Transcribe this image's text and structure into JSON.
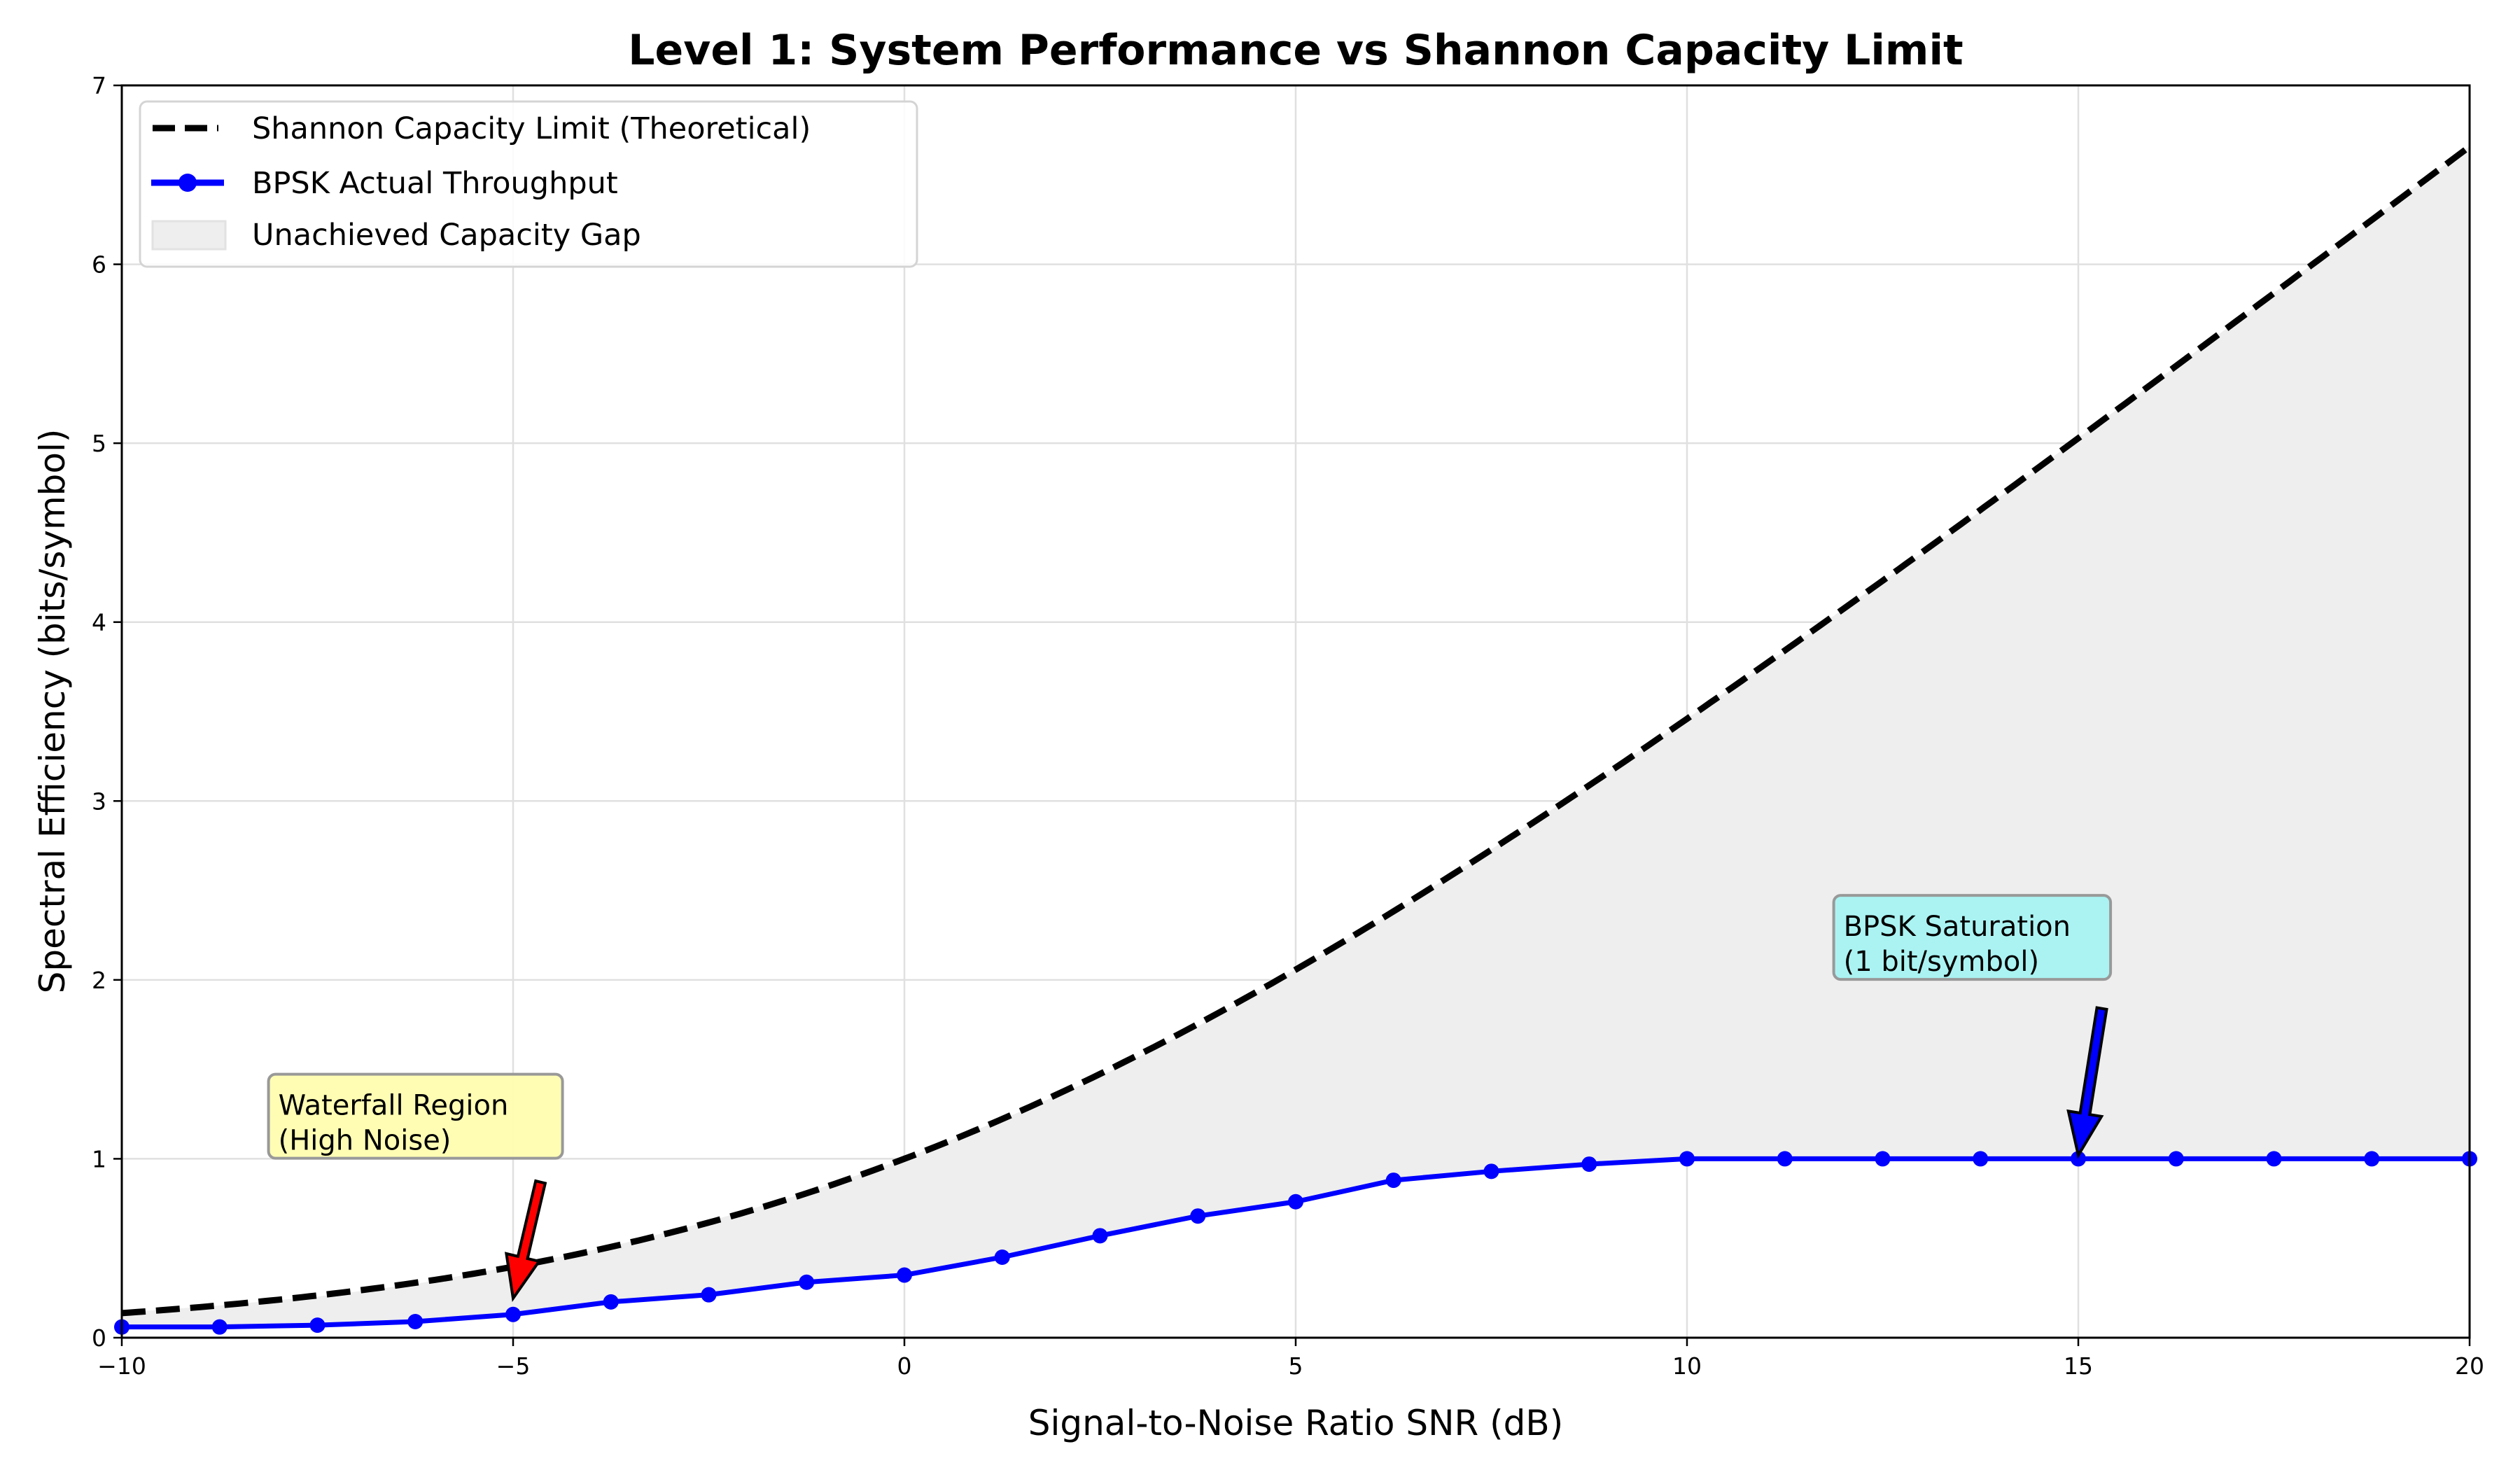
{
  "chart_data": {
    "type": "line",
    "title": "Level 1: System Performance vs Shannon Capacity Limit",
    "xlabel": "Signal-to-Noise Ratio SNR (dB)",
    "ylabel": "Spectral Efficiency (bits/symbol)",
    "xlim": [
      -10,
      20
    ],
    "ylim": [
      0,
      7
    ],
    "xticks": [
      -10,
      -5,
      0,
      5,
      10,
      15,
      20
    ],
    "xtick_labels": [
      "−10",
      "−5",
      "0",
      "5",
      "10",
      "15",
      "20"
    ],
    "yticks": [
      0,
      1,
      2,
      3,
      4,
      5,
      6,
      7
    ],
    "ytick_labels": [
      "0",
      "1",
      "2",
      "3",
      "4",
      "5",
      "6",
      "7"
    ],
    "grid": true,
    "legend_position": "top-left",
    "series": [
      {
        "name": "Shannon Capacity Limit (Theoretical)",
        "style": "dashed",
        "color": "#000000",
        "formula": "log2(1 + 10^(SNR/10))",
        "x": [
          -10,
          -8.75,
          -7.5,
          -6.25,
          -5,
          -3.75,
          -2.5,
          -1.25,
          0,
          1.25,
          2.5,
          3.75,
          5,
          6.25,
          7.5,
          8.75,
          10,
          11.25,
          12.5,
          13.75,
          15,
          16.25,
          17.5,
          18.75,
          20
        ],
        "values": [
          0.14,
          0.18,
          0.23,
          0.3,
          0.4,
          0.51,
          0.65,
          0.81,
          1.0,
          1.22,
          1.46,
          1.74,
          2.06,
          2.38,
          2.73,
          3.09,
          3.46,
          3.84,
          4.23,
          4.62,
          5.03,
          5.43,
          5.84,
          6.25,
          6.66
        ]
      },
      {
        "name": "BPSK Actual Throughput",
        "style": "solid-markers",
        "color": "#0000ff",
        "x": [
          -10,
          -8.75,
          -7.5,
          -6.25,
          -5,
          -3.75,
          -2.5,
          -1.25,
          0,
          1.25,
          2.5,
          3.75,
          5,
          6.25,
          7.5,
          8.75,
          10,
          11.25,
          12.5,
          13.75,
          15,
          16.25,
          17.5,
          18.75,
          20
        ],
        "values": [
          0.06,
          0.06,
          0.07,
          0.09,
          0.13,
          0.2,
          0.24,
          0.31,
          0.35,
          0.45,
          0.57,
          0.68,
          0.76,
          0.88,
          0.93,
          0.97,
          1.0,
          1.0,
          1.0,
          1.0,
          1.0,
          1.0,
          1.0,
          1.0,
          1.0
        ]
      }
    ],
    "fill": {
      "name": "Unachieved Capacity Gap",
      "between": [
        "Shannon Capacity Limit (Theoretical)",
        "BPSK Actual Throughput"
      ],
      "color": "#eeeeee"
    },
    "annotations": [
      {
        "id": "waterfall",
        "lines": [
          "Waterfall Region",
          "(High Noise)"
        ],
        "box_color": "#fffdb0",
        "arrow_color": "#ff0000",
        "text_at": [
          -8,
          1.05
        ],
        "arrow_tail": [
          -4.65,
          0.87
        ],
        "arrow_head": [
          -5,
          0.22
        ]
      },
      {
        "id": "saturation",
        "lines": [
          "BPSK Saturation",
          "(1 bit/symbol)"
        ],
        "box_color": "#a6f2f2",
        "arrow_color": "#0000ff",
        "text_at": [
          12,
          2.05
        ],
        "arrow_tail": [
          15.3,
          1.84
        ],
        "arrow_head": [
          15,
          1.02
        ]
      }
    ]
  }
}
